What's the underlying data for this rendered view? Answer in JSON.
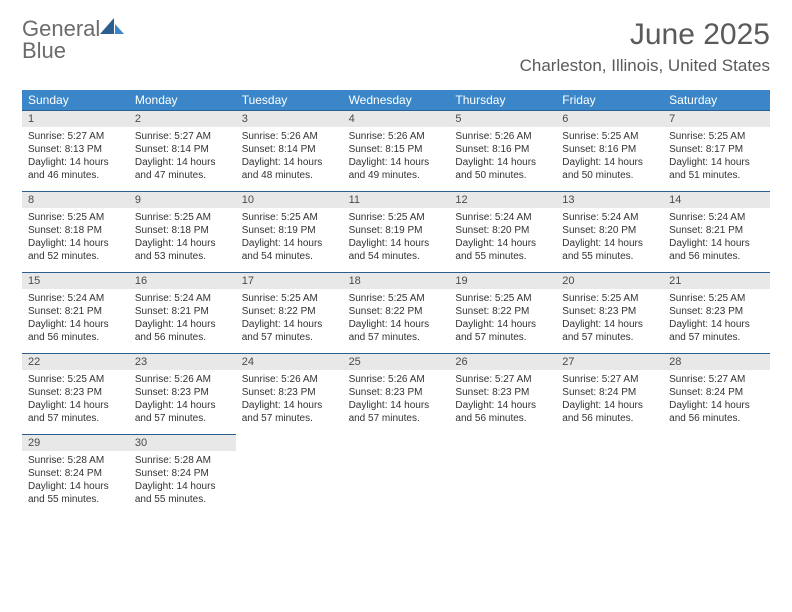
{
  "brand": {
    "word1": "General",
    "word2": "Blue"
  },
  "title": "June 2025",
  "location": "Charleston, Illinois, United States",
  "colors": {
    "header_bg": "#3b86c8",
    "daynum_bg": "#e8e8e8",
    "rule": "#2b5f8f",
    "text": "#333333",
    "muted": "#5a5a5a"
  },
  "day_names": [
    "Sunday",
    "Monday",
    "Tuesday",
    "Wednesday",
    "Thursday",
    "Friday",
    "Saturday"
  ],
  "weeks": [
    [
      {
        "n": "1",
        "sr": "Sunrise: 5:27 AM",
        "ss": "Sunset: 8:13 PM",
        "d1": "Daylight: 14 hours",
        "d2": "and 46 minutes."
      },
      {
        "n": "2",
        "sr": "Sunrise: 5:27 AM",
        "ss": "Sunset: 8:14 PM",
        "d1": "Daylight: 14 hours",
        "d2": "and 47 minutes."
      },
      {
        "n": "3",
        "sr": "Sunrise: 5:26 AM",
        "ss": "Sunset: 8:14 PM",
        "d1": "Daylight: 14 hours",
        "d2": "and 48 minutes."
      },
      {
        "n": "4",
        "sr": "Sunrise: 5:26 AM",
        "ss": "Sunset: 8:15 PM",
        "d1": "Daylight: 14 hours",
        "d2": "and 49 minutes."
      },
      {
        "n": "5",
        "sr": "Sunrise: 5:26 AM",
        "ss": "Sunset: 8:16 PM",
        "d1": "Daylight: 14 hours",
        "d2": "and 50 minutes."
      },
      {
        "n": "6",
        "sr": "Sunrise: 5:25 AM",
        "ss": "Sunset: 8:16 PM",
        "d1": "Daylight: 14 hours",
        "d2": "and 50 minutes."
      },
      {
        "n": "7",
        "sr": "Sunrise: 5:25 AM",
        "ss": "Sunset: 8:17 PM",
        "d1": "Daylight: 14 hours",
        "d2": "and 51 minutes."
      }
    ],
    [
      {
        "n": "8",
        "sr": "Sunrise: 5:25 AM",
        "ss": "Sunset: 8:18 PM",
        "d1": "Daylight: 14 hours",
        "d2": "and 52 minutes."
      },
      {
        "n": "9",
        "sr": "Sunrise: 5:25 AM",
        "ss": "Sunset: 8:18 PM",
        "d1": "Daylight: 14 hours",
        "d2": "and 53 minutes."
      },
      {
        "n": "10",
        "sr": "Sunrise: 5:25 AM",
        "ss": "Sunset: 8:19 PM",
        "d1": "Daylight: 14 hours",
        "d2": "and 54 minutes."
      },
      {
        "n": "11",
        "sr": "Sunrise: 5:25 AM",
        "ss": "Sunset: 8:19 PM",
        "d1": "Daylight: 14 hours",
        "d2": "and 54 minutes."
      },
      {
        "n": "12",
        "sr": "Sunrise: 5:24 AM",
        "ss": "Sunset: 8:20 PM",
        "d1": "Daylight: 14 hours",
        "d2": "and 55 minutes."
      },
      {
        "n": "13",
        "sr": "Sunrise: 5:24 AM",
        "ss": "Sunset: 8:20 PM",
        "d1": "Daylight: 14 hours",
        "d2": "and 55 minutes."
      },
      {
        "n": "14",
        "sr": "Sunrise: 5:24 AM",
        "ss": "Sunset: 8:21 PM",
        "d1": "Daylight: 14 hours",
        "d2": "and 56 minutes."
      }
    ],
    [
      {
        "n": "15",
        "sr": "Sunrise: 5:24 AM",
        "ss": "Sunset: 8:21 PM",
        "d1": "Daylight: 14 hours",
        "d2": "and 56 minutes."
      },
      {
        "n": "16",
        "sr": "Sunrise: 5:24 AM",
        "ss": "Sunset: 8:21 PM",
        "d1": "Daylight: 14 hours",
        "d2": "and 56 minutes."
      },
      {
        "n": "17",
        "sr": "Sunrise: 5:25 AM",
        "ss": "Sunset: 8:22 PM",
        "d1": "Daylight: 14 hours",
        "d2": "and 57 minutes."
      },
      {
        "n": "18",
        "sr": "Sunrise: 5:25 AM",
        "ss": "Sunset: 8:22 PM",
        "d1": "Daylight: 14 hours",
        "d2": "and 57 minutes."
      },
      {
        "n": "19",
        "sr": "Sunrise: 5:25 AM",
        "ss": "Sunset: 8:22 PM",
        "d1": "Daylight: 14 hours",
        "d2": "and 57 minutes."
      },
      {
        "n": "20",
        "sr": "Sunrise: 5:25 AM",
        "ss": "Sunset: 8:23 PM",
        "d1": "Daylight: 14 hours",
        "d2": "and 57 minutes."
      },
      {
        "n": "21",
        "sr": "Sunrise: 5:25 AM",
        "ss": "Sunset: 8:23 PM",
        "d1": "Daylight: 14 hours",
        "d2": "and 57 minutes."
      }
    ],
    [
      {
        "n": "22",
        "sr": "Sunrise: 5:25 AM",
        "ss": "Sunset: 8:23 PM",
        "d1": "Daylight: 14 hours",
        "d2": "and 57 minutes."
      },
      {
        "n": "23",
        "sr": "Sunrise: 5:26 AM",
        "ss": "Sunset: 8:23 PM",
        "d1": "Daylight: 14 hours",
        "d2": "and 57 minutes."
      },
      {
        "n": "24",
        "sr": "Sunrise: 5:26 AM",
        "ss": "Sunset: 8:23 PM",
        "d1": "Daylight: 14 hours",
        "d2": "and 57 minutes."
      },
      {
        "n": "25",
        "sr": "Sunrise: 5:26 AM",
        "ss": "Sunset: 8:23 PM",
        "d1": "Daylight: 14 hours",
        "d2": "and 57 minutes."
      },
      {
        "n": "26",
        "sr": "Sunrise: 5:27 AM",
        "ss": "Sunset: 8:23 PM",
        "d1": "Daylight: 14 hours",
        "d2": "and 56 minutes."
      },
      {
        "n": "27",
        "sr": "Sunrise: 5:27 AM",
        "ss": "Sunset: 8:24 PM",
        "d1": "Daylight: 14 hours",
        "d2": "and 56 minutes."
      },
      {
        "n": "28",
        "sr": "Sunrise: 5:27 AM",
        "ss": "Sunset: 8:24 PM",
        "d1": "Daylight: 14 hours",
        "d2": "and 56 minutes."
      }
    ],
    [
      {
        "n": "29",
        "sr": "Sunrise: 5:28 AM",
        "ss": "Sunset: 8:24 PM",
        "d1": "Daylight: 14 hours",
        "d2": "and 55 minutes."
      },
      {
        "n": "30",
        "sr": "Sunrise: 5:28 AM",
        "ss": "Sunset: 8:24 PM",
        "d1": "Daylight: 14 hours",
        "d2": "and 55 minutes."
      },
      null,
      null,
      null,
      null,
      null
    ]
  ]
}
